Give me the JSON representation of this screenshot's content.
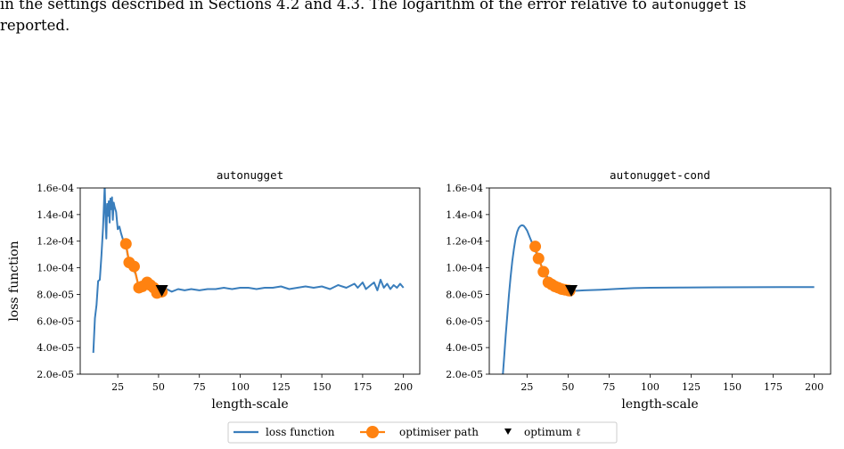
{
  "caption": {
    "line1_a": "in the settings described in Sections 4.2 and 4.3.  The logarithm of the error relative to ",
    "line1_code": "autonugget",
    "line1_b": " is",
    "line2": "reported."
  },
  "colors": {
    "loss": "#3a7ebc",
    "path": "#ff8210",
    "optimum": "#000000"
  },
  "legend": {
    "loss_label": "loss function",
    "path_label": "optimiser path",
    "optimum_label": "optimum ℓ"
  },
  "chart_data": [
    {
      "type": "line",
      "title": "autonugget",
      "xlabel": "length-scale",
      "ylabel": "loss function",
      "xlim": [
        2,
        210
      ],
      "ylim": [
        2e-05,
        0.00016
      ],
      "xticks": [
        25,
        50,
        75,
        100,
        125,
        150,
        175,
        200
      ],
      "yticks": [
        2e-05,
        4e-05,
        6e-05,
        8e-05,
        0.0001,
        0.00012,
        0.00014,
        0.00016
      ],
      "ytick_labels": [
        "2.0e-05",
        "4.0e-05",
        "6.0e-05",
        "8.0e-05",
        "1.0e-04",
        "1.2e-04",
        "1.4e-04",
        "1.6e-04"
      ],
      "grid": false,
      "series": [
        {
          "name": "loss function",
          "x": [
            10,
            11,
            12,
            13,
            14,
            15,
            16,
            17,
            17.5,
            18,
            18.5,
            19,
            19.5,
            20,
            20.5,
            21,
            21.5,
            22,
            22.5,
            23,
            24,
            25,
            26,
            27,
            28,
            29,
            30,
            31,
            32,
            33,
            34,
            35,
            36,
            37,
            38,
            39,
            40,
            41,
            42,
            43,
            44,
            45,
            46,
            47,
            48,
            50,
            52,
            55,
            58,
            62,
            66,
            70,
            75,
            80,
            85,
            90,
            95,
            100,
            105,
            110,
            115,
            120,
            125,
            130,
            135,
            140,
            145,
            150,
            155,
            160,
            165,
            170,
            172,
            175,
            177,
            180,
            182,
            184,
            186,
            188,
            190,
            192,
            194,
            196,
            198,
            200
          ],
          "y": [
            3.6e-05,
            6.2e-05,
            7.2e-05,
            9e-05,
            9.1e-05,
            0.000109,
            0.00013,
            0.000162,
            0.000138,
            0.000122,
            0.000148,
            0.000139,
            0.00015,
            0.000134,
            0.000152,
            0.000144,
            0.000153,
            0.000136,
            0.000149,
            0.000146,
            0.000142,
            0.000129,
            0.000131,
            0.000126,
            0.000122,
            0.000118,
            0.000117,
            0.00011,
            0.000104,
            0.000102,
            0.000101,
            9.8e-05,
            9.5e-05,
            9e-05,
            8.5e-05,
            8.7e-05,
            8.9e-05,
            8.6e-05,
            8.7e-05,
            8.9e-05,
            8.5e-05,
            8.8e-05,
            8.4e-05,
            8.7e-05,
            8.3e-05,
            8.2e-05,
            8.3e-05,
            8.4e-05,
            8.2e-05,
            8.4e-05,
            8.3e-05,
            8.4e-05,
            8.3e-05,
            8.4e-05,
            8.4e-05,
            8.5e-05,
            8.4e-05,
            8.5e-05,
            8.5e-05,
            8.4e-05,
            8.5e-05,
            8.5e-05,
            8.6e-05,
            8.4e-05,
            8.5e-05,
            8.6e-05,
            8.5e-05,
            8.6e-05,
            8.4e-05,
            8.7e-05,
            8.5e-05,
            8.8e-05,
            8.5e-05,
            8.9e-05,
            8.4e-05,
            8.7e-05,
            8.9e-05,
            8.3e-05,
            9.1e-05,
            8.5e-05,
            8.8e-05,
            8.4e-05,
            8.7e-05,
            8.5e-05,
            8.8e-05,
            8.5e-05
          ]
        },
        {
          "name": "optimiser path",
          "x": [
            30,
            32,
            35,
            38,
            40,
            43,
            45,
            47,
            49,
            51,
            52
          ],
          "y": [
            0.000118,
            0.000104,
            0.000101,
            8.5e-05,
            8.6e-05,
            8.9e-05,
            8.7e-05,
            8.5e-05,
            8.1e-05,
            8.2e-05,
            8.2e-05
          ]
        },
        {
          "name": "optimum ℓ",
          "x": [
            52
          ],
          "y": [
            8.3e-05
          ]
        }
      ]
    },
    {
      "type": "line",
      "title": "autonugget-cond",
      "xlabel": "length-scale",
      "ylabel": "",
      "xlim": [
        2,
        210
      ],
      "ylim": [
        2e-05,
        0.00016
      ],
      "xticks": [
        25,
        50,
        75,
        100,
        125,
        150,
        175,
        200
      ],
      "yticks": [
        2e-05,
        4e-05,
        6e-05,
        8e-05,
        0.0001,
        0.00012,
        0.00014,
        0.00016
      ],
      "ytick_labels": [
        "2.0e-05",
        "4.0e-05",
        "6.0e-05",
        "8.0e-05",
        "1.0e-04",
        "1.2e-04",
        "1.4e-04",
        "1.6e-04"
      ],
      "grid": false,
      "series": [
        {
          "name": "loss function",
          "x": [
            10,
            11,
            12,
            13,
            14,
            15,
            16,
            17,
            18,
            19,
            20,
            21,
            22,
            23,
            24,
            25,
            26,
            27,
            28,
            29,
            30,
            32,
            34,
            36,
            38,
            40,
            42,
            44,
            46,
            48,
            50,
            52,
            55,
            60,
            70,
            80,
            90,
            100,
            120,
            140,
            160,
            180,
            200
          ],
          "y": [
            1.5e-05,
            3.2e-05,
            4.9e-05,
            6.5e-05,
            8e-05,
            9.3e-05,
            0.000105,
            0.000114,
            0.000122,
            0.000127,
            0.00013,
            0.0001315,
            0.000132,
            0.0001315,
            0.00013,
            0.000128,
            0.000125,
            0.000122,
            0.000119,
            0.000116,
            0.000113,
            0.000107,
            0.000101,
            9.6e-05,
            9.2e-05,
            8.9e-05,
            8.7e-05,
            8.55e-05,
            8.45e-05,
            8.38e-05,
            8.32e-05,
            8.29e-05,
            8.27e-05,
            8.3e-05,
            8.35e-05,
            8.42e-05,
            8.47e-05,
            8.5e-05,
            8.52e-05,
            8.53e-05,
            8.54e-05,
            8.55e-05,
            8.55e-05
          ]
        },
        {
          "name": "optimiser path",
          "x": [
            30,
            32,
            35,
            38,
            40,
            42,
            44,
            46,
            48,
            50,
            51
          ],
          "y": [
            0.000116,
            0.000107,
            9.7e-05,
            8.9e-05,
            8.75e-05,
            8.6e-05,
            8.5e-05,
            8.4e-05,
            8.35e-05,
            8.3e-05,
            8.28e-05
          ]
        },
        {
          "name": "optimum ℓ",
          "x": [
            52
          ],
          "y": [
            8.3e-05
          ]
        }
      ]
    }
  ]
}
